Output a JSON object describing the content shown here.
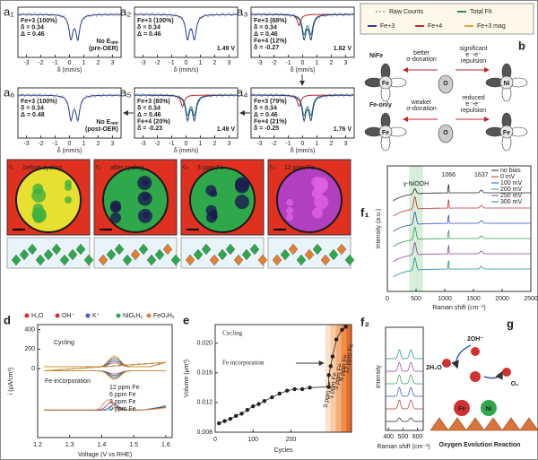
{
  "a": {
    "xlabel": "δ (mm/s)",
    "xticks": [
      -3,
      -2,
      -1,
      0,
      1,
      2,
      3
    ],
    "xlim": [
      -3.6,
      3.6
    ],
    "panels": [
      {
        "label": "a₁",
        "lines": [
          {
            "text": "Fe+3 (100%)",
            "color": "#2b3f8f"
          },
          {
            "text": "δ = 0.34",
            "color": "#2b3f8f"
          },
          {
            "text": "Δ = 0.46",
            "color": "#2b3f8f"
          }
        ],
        "note": [
          "No Eₐₚₚ",
          "(pre-OER)"
        ],
        "note_color": "#999999"
      },
      {
        "label": "a₂",
        "lines": [
          {
            "text": "Fe+3 (100%)",
            "color": "#2b3f8f"
          },
          {
            "text": "δ = 0.34",
            "color": "#2b3f8f"
          },
          {
            "text": "Δ = 0.46",
            "color": "#2b3f8f"
          }
        ],
        "note": [
          "1.49 V"
        ],
        "note_color": "#9b59b6"
      },
      {
        "label": "a₃",
        "lines": [
          {
            "text": "Fe+3 (88%)",
            "color": "#2b3f8f"
          },
          {
            "text": "δ = 0.34",
            "color": "#2b3f8f"
          },
          {
            "text": "Δ = 0.46",
            "color": "#2b3f8f"
          },
          {
            "text": "Fe+4 (12%)",
            "color": "#c0282c"
          },
          {
            "text": "δ = -0.27",
            "color": "#c0282c"
          }
        ],
        "note": [
          "1.62 V"
        ],
        "note_color": "#e0a020"
      },
      {
        "label": "a₄",
        "lines": [
          {
            "text": "Fe+3 (79%)",
            "color": "#2b3f8f"
          },
          {
            "text": "δ = 0.34",
            "color": "#2b3f8f"
          },
          {
            "text": "Δ = 0.46",
            "color": "#2b3f8f"
          },
          {
            "text": "Fe+4 (21%)",
            "color": "#c0282c"
          },
          {
            "text": "δ = -0.25",
            "color": "#c0282c"
          }
        ],
        "note": [
          "1.76 V"
        ],
        "note_color": "#c0282c"
      },
      {
        "label": "a₅",
        "lines": [
          {
            "text": "Fe+3 (80%)",
            "color": "#2b3f8f"
          },
          {
            "text": "δ = 0.34",
            "color": "#2b3f8f"
          },
          {
            "text": "Δ = 0.46",
            "color": "#2b3f8f"
          },
          {
            "text": "Fe+4 (20%)",
            "color": "#c0282c"
          },
          {
            "text": "δ = -0.23",
            "color": "#c0282c"
          }
        ],
        "note": [
          "1.49 V"
        ],
        "note_color": "#9b59b6"
      },
      {
        "label": "a₆",
        "lines": [
          {
            "text": "Fe+3 (100%)",
            "color": "#2b3f8f"
          },
          {
            "text": "δ = 0.34",
            "color": "#2b3f8f"
          },
          {
            "text": "Δ = 0.48",
            "color": "#2b3f8f"
          }
        ],
        "note": [
          "No Eₐₚₚ",
          "(post-OER)"
        ],
        "note_color": "#999999"
      }
    ]
  },
  "b": {
    "label": "b",
    "legend": [
      {
        "name": "Raw Counts",
        "color": "#9a9a9a"
      },
      {
        "name": "Total Fit",
        "color": "#2e8b57"
      },
      {
        "name": "Fe+3",
        "color": "#2b3f8f"
      },
      {
        "name": "Fe+4",
        "color": "#c0282c"
      },
      {
        "name": "Fe+3 mag",
        "color": "#e8a33d"
      }
    ],
    "diagrams": [
      {
        "title": "NiFe",
        "left": [
          "better",
          "σ-donation"
        ],
        "right": [
          "significant",
          "e⁻-e⁻",
          "repulsion"
        ],
        "atoms": [
          "Fe",
          "O",
          "Ni"
        ]
      },
      {
        "title": "Fe-only",
        "left": [
          "weaker",
          "σ-donation"
        ],
        "right": [
          "reduced",
          "e⁻-e⁻",
          "repulsion"
        ],
        "atoms": [
          "Fe",
          "O",
          "Fe"
        ]
      }
    ]
  },
  "c": {
    "panels": [
      {
        "label": "c₁",
        "title": "before cycling"
      },
      {
        "label": "c₂",
        "title": "after cycling"
      },
      {
        "label": "c₃",
        "title": "3 ppm Fe"
      },
      {
        "label": "c₄",
        "title": "12 ppm Fe"
      }
    ]
  },
  "d": {
    "label": "d",
    "legend": [
      "H₂O",
      "OH⁻",
      "K⁺",
      "NiOₓHᵧ",
      "FeOₓHᵧ"
    ],
    "ylabel": "i (μA/cm²)",
    "xlabel": "Voltage (V vs RHE)",
    "xlim": [
      1.2,
      1.62
    ],
    "xticks": [
      1.2,
      1.3,
      1.4,
      1.5,
      1.6
    ],
    "ylim": [
      -700,
      450
    ],
    "yticks": [
      0,
      200,
      400
    ],
    "top_label": "Cycling",
    "bottom_label": "Fe-incorporation",
    "series": [
      {
        "name": "12 ppm Fe",
        "color": "#2aa8a8"
      },
      {
        "name": "6 ppm Fe",
        "color": "#3060c0"
      },
      {
        "name": "3 ppm Fe",
        "color": "#c03030"
      },
      {
        "name": "0 ppm Fe",
        "color": "#e08030"
      }
    ]
  },
  "e": {
    "label": "e",
    "type": "scatter",
    "title": "Cycling",
    "annotation": "Fe incorporation",
    "ylabel": "Volume (μm³)",
    "xlabel": "Cycles",
    "xlim": [
      0,
      360
    ],
    "xticks": [
      0,
      100,
      200
    ],
    "ylim": [
      0.008,
      0.0225
    ],
    "yticks": [
      0.008,
      0.012,
      0.016,
      {
        "value": 0.02,
        "label": "0.020"
      }
    ],
    "bands": [
      "0 ppm Fe",
      "1 ppm Fe",
      "3 ppm Fe",
      "6 ppm Fe",
      "12 ppm Fe"
    ],
    "x": [
      10,
      25,
      40,
      55,
      70,
      85,
      100,
      115,
      130,
      150,
      170,
      190,
      210,
      230,
      250,
      300,
      300,
      305,
      310,
      320,
      335,
      345
    ],
    "values": [
      0.0092,
      0.0095,
      0.0098,
      0.0102,
      0.0105,
      0.011,
      0.0115,
      0.0118,
      0.0122,
      0.0127,
      0.0132,
      0.0136,
      0.0138,
      0.0138,
      0.014,
      0.0141,
      0.0157,
      0.0169,
      0.0182,
      0.0205,
      0.0218,
      0.0222
    ],
    "color": "#222222"
  },
  "f1": {
    "label": "f₁",
    "xlabel": "Raman shift (cm⁻¹)",
    "ylabel": "Intensity (a.u.)",
    "xlim": [
      0,
      2500
    ],
    "xticks": [
      0,
      500,
      1000,
      1500,
      2000,
      2500
    ],
    "peaks": [
      {
        "label": "γ-NiOOH",
        "x": 500
      },
      {
        "label": "1066",
        "x": 1066
      },
      {
        "label": "1637",
        "x": 1637
      }
    ],
    "series": [
      {
        "name": "no bias",
        "color": "#222222"
      },
      {
        "name": "0 mV",
        "color": "#c03030"
      },
      {
        "name": "100 mV",
        "color": "#3050c0"
      },
      {
        "name": "200 mV",
        "color": "#2e9b57"
      },
      {
        "name": "250 mV",
        "color": "#8a3fa0"
      },
      {
        "name": "300 mV",
        "color": "#1a8a9a"
      }
    ]
  },
  "f2": {
    "label": "f₂",
    "xlabel": "Raman shift (cm⁻¹)",
    "ylabel": "Intensity",
    "xlim": [
      380,
      640
    ],
    "xticks": [
      400,
      500,
      600
    ]
  },
  "g": {
    "label": "g",
    "labels": [
      "2OH⁻",
      "2H₂O",
      "O₂",
      "Fe",
      "Ni"
    ],
    "caption": "Oxygen Evolution Reaction"
  }
}
